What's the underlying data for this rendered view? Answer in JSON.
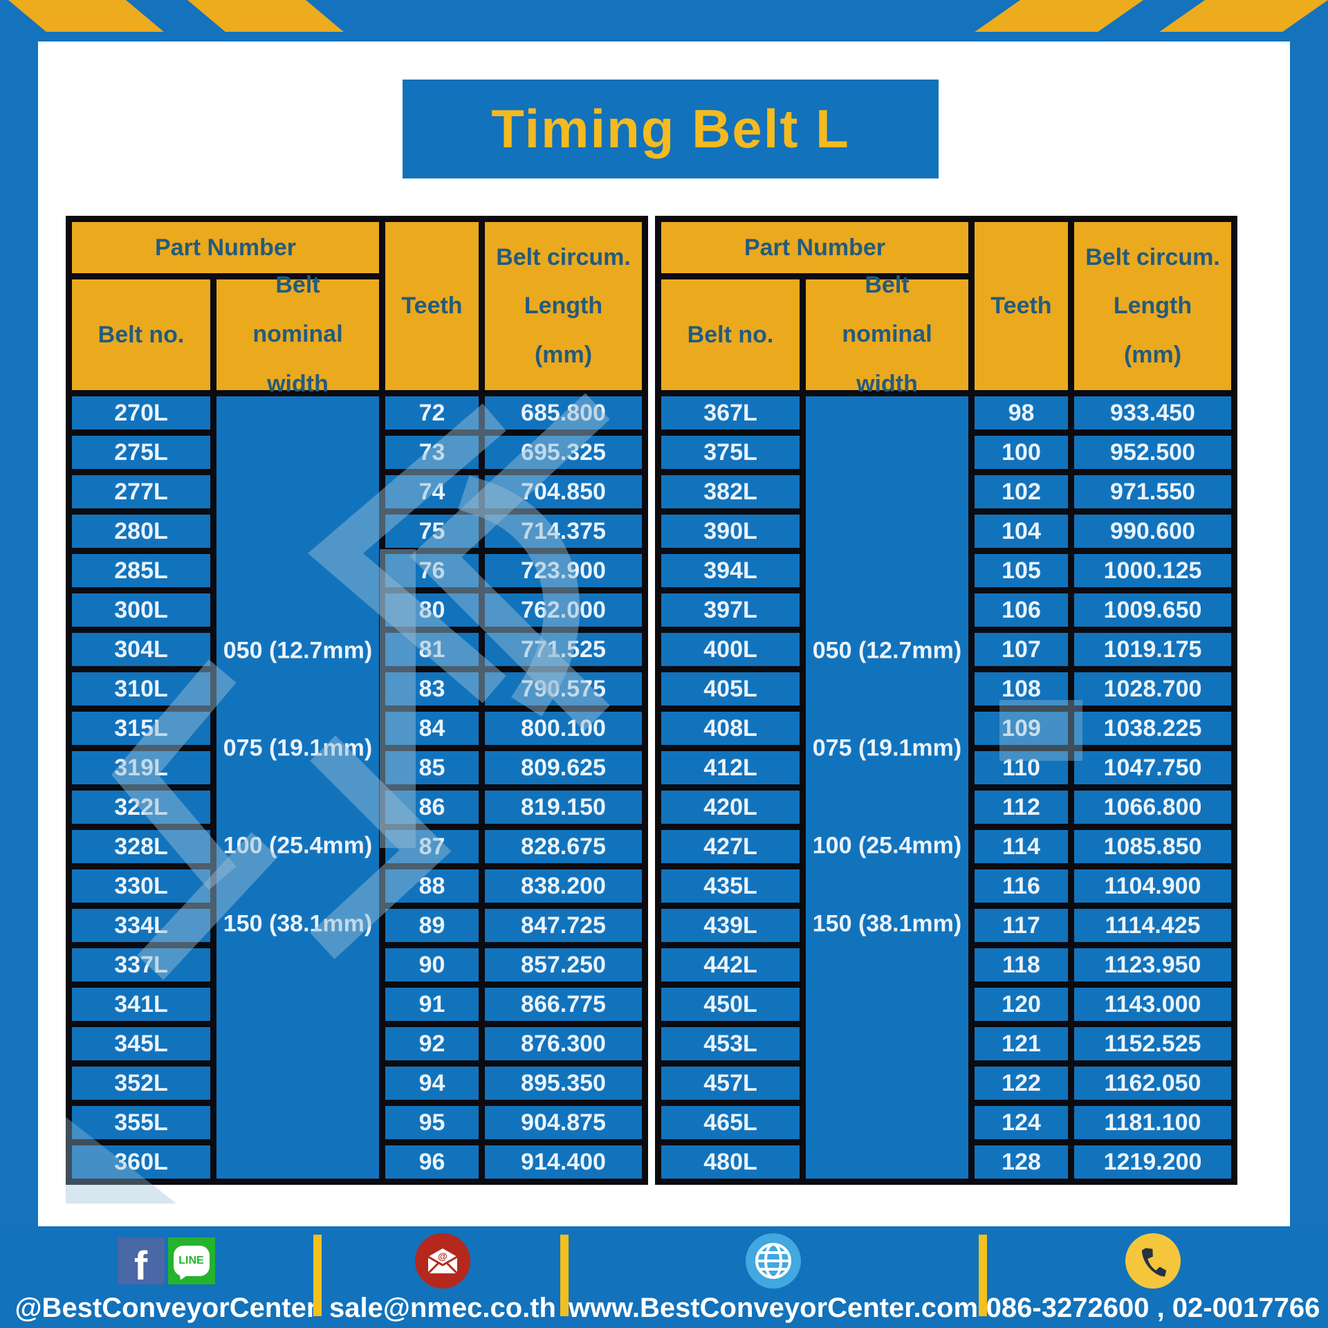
{
  "title": "Timing Belt L",
  "header": {
    "part_number": "Part Number",
    "belt_no": "Belt no.",
    "belt_nominal_width": "Belt nominal width",
    "teeth": "Teeth",
    "circum_lines": [
      "Belt circum.",
      "Length",
      "(mm)"
    ]
  },
  "tables": [
    {
      "widths": [
        "050 (12.7mm)",
        "075 (19.1mm)",
        "100 (25.4mm)",
        "150 (38.1mm)"
      ],
      "rows": [
        [
          "270L",
          "72",
          "685.800"
        ],
        [
          "275L",
          "73",
          "695.325"
        ],
        [
          "277L",
          "74",
          "704.850"
        ],
        [
          "280L",
          "75",
          "714.375"
        ],
        [
          "285L",
          "76",
          "723.900"
        ],
        [
          "300L",
          "80",
          "762.000"
        ],
        [
          "304L",
          "81",
          "771.525"
        ],
        [
          "310L",
          "83",
          "790.575"
        ],
        [
          "315L",
          "84",
          "800.100"
        ],
        [
          "319L",
          "85",
          "809.625"
        ],
        [
          "322L",
          "86",
          "819.150"
        ],
        [
          "328L",
          "87",
          "828.675"
        ],
        [
          "330L",
          "88",
          "838.200"
        ],
        [
          "334L",
          "89",
          "847.725"
        ],
        [
          "337L",
          "90",
          "857.250"
        ],
        [
          "341L",
          "91",
          "866.775"
        ],
        [
          "345L",
          "92",
          "876.300"
        ],
        [
          "352L",
          "94",
          "895.350"
        ],
        [
          "355L",
          "95",
          "904.875"
        ],
        [
          "360L",
          "96",
          "914.400"
        ]
      ]
    },
    {
      "widths": [
        "050 (12.7mm)",
        "075 (19.1mm)",
        "100 (25.4mm)",
        "150 (38.1mm)"
      ],
      "rows": [
        [
          "367L",
          "98",
          "933.450"
        ],
        [
          "375L",
          "100",
          "952.500"
        ],
        [
          "382L",
          "102",
          "971.550"
        ],
        [
          "390L",
          "104",
          "990.600"
        ],
        [
          "394L",
          "105",
          "1000.125"
        ],
        [
          "397L",
          "106",
          "1009.650"
        ],
        [
          "400L",
          "107",
          "1019.175"
        ],
        [
          "405L",
          "108",
          "1028.700"
        ],
        [
          "408L",
          "109",
          "1038.225"
        ],
        [
          "412L",
          "110",
          "1047.750"
        ],
        [
          "420L",
          "112",
          "1066.800"
        ],
        [
          "427L",
          "114",
          "1085.850"
        ],
        [
          "435L",
          "116",
          "1104.900"
        ],
        [
          "439L",
          "117",
          "1114.425"
        ],
        [
          "442L",
          "118",
          "1123.950"
        ],
        [
          "450L",
          "120",
          "1143.000"
        ],
        [
          "453L",
          "121",
          "1152.525"
        ],
        [
          "457L",
          "122",
          "1162.050"
        ],
        [
          "465L",
          "124",
          "1181.100"
        ],
        [
          "480L",
          "128",
          "1219.200"
        ]
      ]
    }
  ],
  "footer": {
    "social_handle": "@BestConveyorCenter",
    "line_icon_text": "LINE",
    "facebook_icon_letter": "f",
    "email": "sale@nmec.co.th",
    "website": "www.BestConveyorCenter.com",
    "phones": "086-3272600 , 02-0017766"
  },
  "colors": {
    "frame_blue": "#1473BC",
    "cell_blue": "#1273BD",
    "header_yellow": "#EBA91E",
    "title_yellow": "#F4BA20",
    "header_text_blue": "#235B7D",
    "border_black": "#0B0B10",
    "divider_yellow": "#F4C01E"
  }
}
